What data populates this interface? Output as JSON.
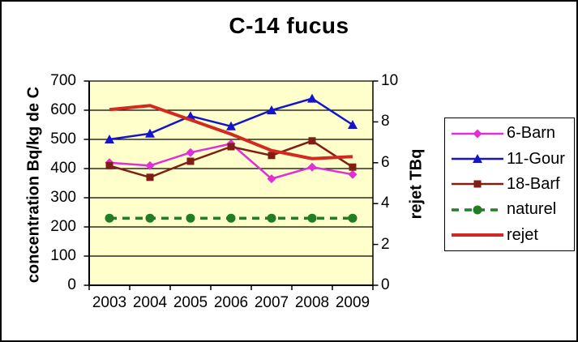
{
  "chart_data": {
    "type": "line",
    "title": "C-14 fucus",
    "categories": [
      "2003",
      "2004",
      "2005",
      "2006",
      "2007",
      "2008",
      "2009"
    ],
    "axes": {
      "left": {
        "label": "concentration Bq/kg de C",
        "min": 0,
        "max": 700,
        "step": 100,
        "tick_labels": [
          "0",
          "100",
          "200",
          "300",
          "400",
          "500",
          "600",
          "700"
        ]
      },
      "right": {
        "label": "rejet TBq",
        "min": 0,
        "max": 10,
        "step": 2,
        "tick_labels": [
          "0",
          "2",
          "4",
          "6",
          "8",
          "10"
        ]
      }
    },
    "grid": true,
    "plot_background": "#ffffcc",
    "legend_position": "right",
    "series": [
      {
        "name": "6-Barn",
        "axis": "left",
        "color": "#e02fd7",
        "marker": "diamond",
        "line_style": "solid",
        "line_width": 2.5,
        "values": [
          420,
          410,
          455,
          485,
          365,
          405,
          380
        ]
      },
      {
        "name": "11-Gour",
        "axis": "left",
        "color": "#1414cc",
        "marker": "triangle",
        "line_style": "solid",
        "line_width": 2.5,
        "values": [
          500,
          520,
          580,
          545,
          600,
          640,
          550
        ]
      },
      {
        "name": "18-Barf",
        "axis": "left",
        "color": "#801e16",
        "marker": "square",
        "line_style": "solid",
        "line_width": 2.5,
        "values": [
          410,
          370,
          425,
          475,
          445,
          495,
          405
        ]
      },
      {
        "name": "naturel",
        "axis": "left",
        "color": "#227e22",
        "marker": "circle",
        "line_style": "dashed",
        "line_width": 3.5,
        "values": [
          230,
          230,
          230,
          230,
          230,
          230,
          230
        ]
      },
      {
        "name": "rejet",
        "axis": "right",
        "color": "#d22a21",
        "marker": "none",
        "line_style": "solid",
        "line_width": 4,
        "values": [
          8.6,
          8.8,
          8.1,
          7.4,
          6.6,
          6.2,
          6.3
        ]
      }
    ],
    "colors": {
      "plot_bg": "#ffffcc",
      "gridline": "#000000",
      "axis": "#000000",
      "legend_bg": "#ffffff",
      "frame": "#000000",
      "text": "#000000"
    }
  }
}
